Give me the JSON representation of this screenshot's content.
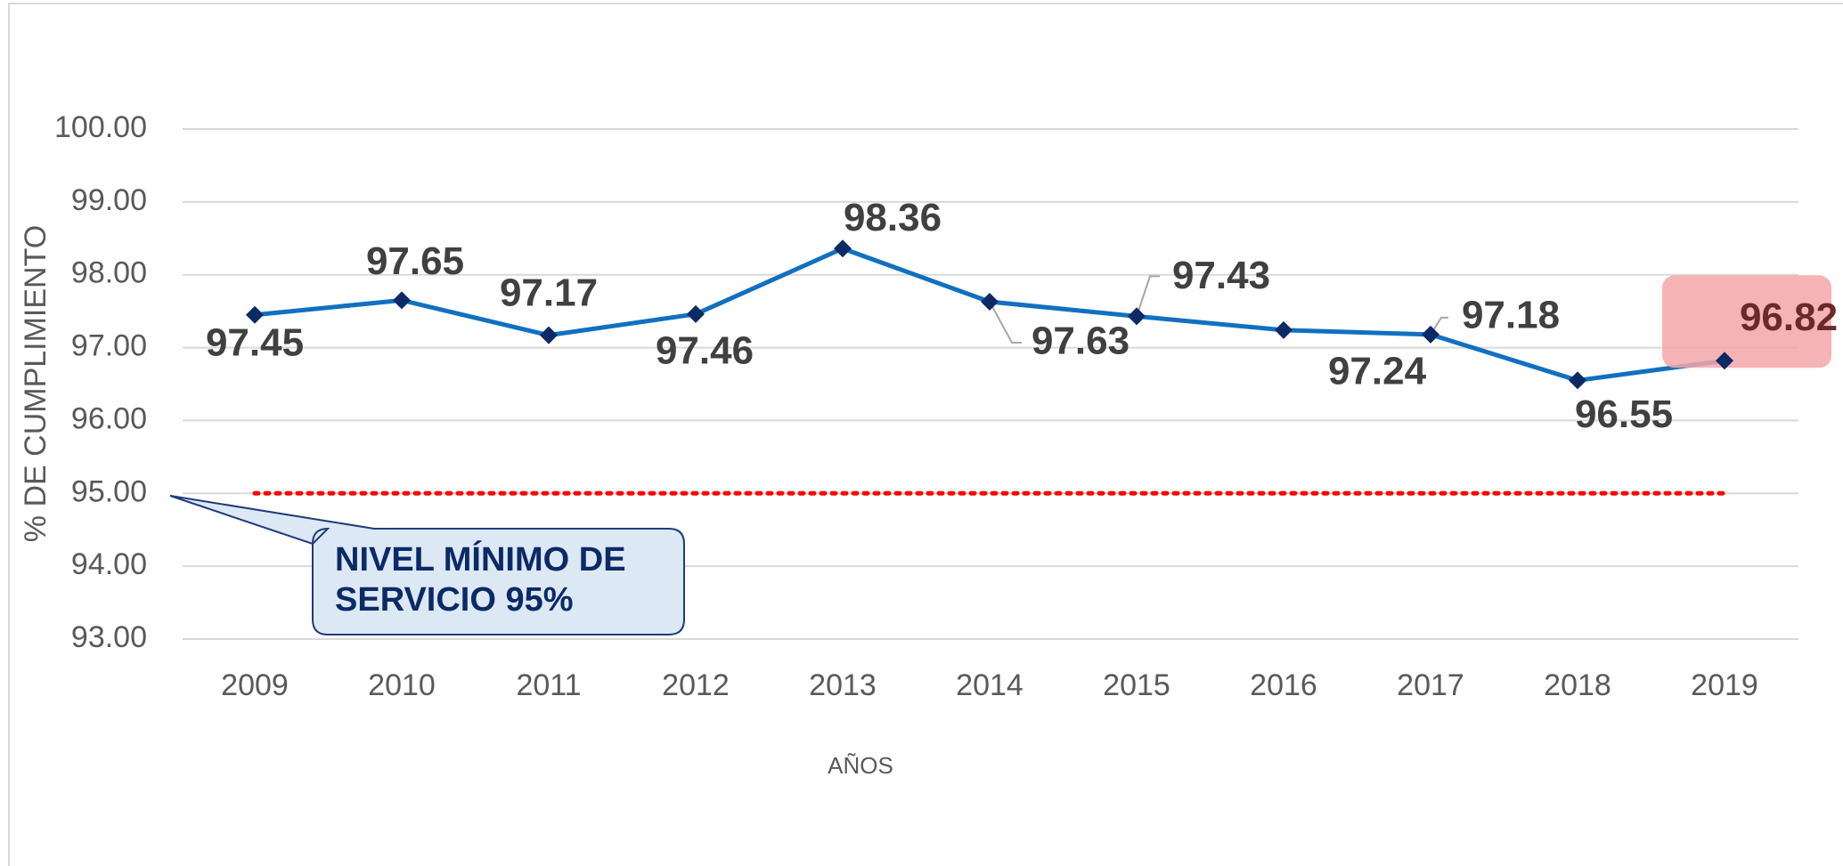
{
  "chart_data": {
    "type": "line",
    "x_label": "AÑOS",
    "y_label": "% DE CUMPLIMIENTO",
    "categories": [
      "2009",
      "2010",
      "2011",
      "2012",
      "2013",
      "2014",
      "2015",
      "2016",
      "2017",
      "2018",
      "2019"
    ],
    "series": [
      {
        "color": "#1170c0",
        "marker_color": "#0b2a66",
        "values": [
          97.45,
          97.65,
          97.17,
          97.46,
          98.36,
          97.63,
          97.43,
          97.24,
          97.18,
          96.55,
          96.82
        ]
      }
    ],
    "ylim": [
      93,
      100
    ],
    "yticks": [
      {
        "value": 93,
        "label": "93.00"
      },
      {
        "value": 94,
        "label": "94.00"
      },
      {
        "value": 95,
        "label": "95.00"
      },
      {
        "value": 96,
        "label": "96.00"
      },
      {
        "value": 97,
        "label": "97.00"
      },
      {
        "value": 98,
        "label": "98.00"
      },
      {
        "value": 99,
        "label": "99.00"
      },
      {
        "value": 100,
        "label": "100.00"
      }
    ],
    "grid": true,
    "reference_line": {
      "value": 95,
      "color": "#ff0000"
    },
    "annotation": [
      "NIVEL MÍNIMO DE",
      "SERVICIO 95%"
    ]
  }
}
